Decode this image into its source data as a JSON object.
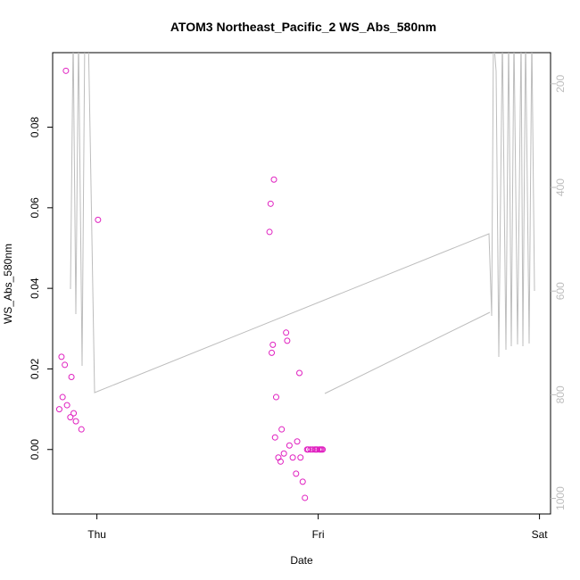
{
  "chart_data": {
    "type": "scatter",
    "title": "ATOM3 Northeast_Pacific_2 WS_Abs_580nm",
    "xlabel": "Date",
    "ylabel": "WS_Abs_580nm",
    "x_ticks": [
      "Thu",
      "Fri",
      "Sat"
    ],
    "xlim": [
      -0.2,
      2.05
    ],
    "ylim": [
      -0.016,
      0.0985
    ],
    "y_ticks": [
      "0.00",
      "0.02",
      "0.04",
      "0.06",
      "0.08"
    ],
    "y_tick_values": [
      0.0,
      0.02,
      0.04,
      0.06,
      0.08
    ],
    "right_axis": {
      "label": "",
      "ticks": [
        "200",
        "400",
        "600",
        "800",
        "1000"
      ],
      "tick_values": [
        200,
        400,
        600,
        800,
        1000
      ],
      "ylim": [
        1030,
        140
      ],
      "inverted": true
    },
    "colors": {
      "points": "#e020c0",
      "altitude": "#bdbdbd",
      "axes": "#000000"
    },
    "series": [
      {
        "name": "WS_Abs_580nm",
        "type": "scatter",
        "x": [
          -0.17,
          -0.16,
          -0.155,
          -0.145,
          -0.14,
          -0.135,
          -0.12,
          -0.115,
          -0.105,
          -0.095,
          -0.07,
          0.005,
          0.78,
          0.785,
          0.79,
          0.795,
          0.8,
          0.805,
          0.81,
          0.82,
          0.83,
          0.835,
          0.845,
          0.855,
          0.86,
          0.87,
          0.885,
          0.9,
          0.905,
          0.915,
          0.92,
          0.93,
          0.94,
          0.95,
          0.955,
          0.965,
          0.975,
          0.985,
          0.99,
          0.995,
          1.005,
          1.01,
          1.015,
          1.02
        ],
        "y": [
          0.01,
          0.023,
          0.013,
          0.021,
          0.094,
          0.011,
          0.008,
          0.018,
          0.009,
          0.007,
          0.005,
          0.057,
          0.054,
          0.061,
          0.024,
          0.026,
          0.067,
          0.003,
          0.013,
          -0.002,
          -0.003,
          0.005,
          -0.001,
          0.029,
          0.027,
          0.001,
          -0.002,
          -0.006,
          0.002,
          0.019,
          -0.002,
          -0.008,
          -0.012,
          0.0,
          0.0,
          0.0,
          0.0,
          0.0,
          0.0,
          0.0,
          0.0,
          0.0,
          0.0,
          0.0
        ]
      }
    ]
  }
}
